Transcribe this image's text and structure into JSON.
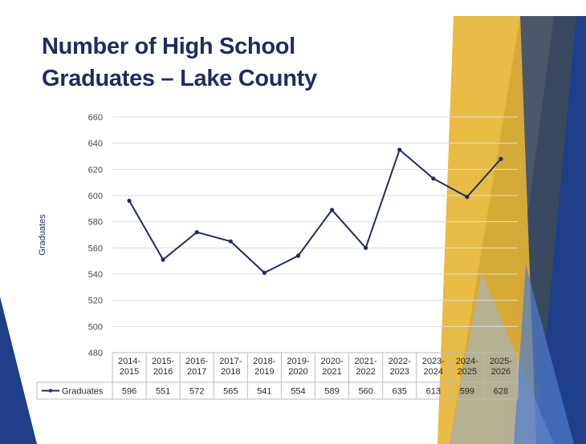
{
  "slide": {
    "title_line1": "Number of High School",
    "title_line2": "Graduates – Lake County"
  },
  "colors": {
    "title": "#1f2d5c",
    "line": "#1f2d5c",
    "gold": "#e5b431",
    "navy": "#1f3f8a",
    "slate": "#3d4a5c",
    "gridline": "#dcdcdc"
  },
  "chart_data": {
    "type": "line",
    "title": "",
    "xlabel": "",
    "ylabel": "Graduates",
    "ylim": [
      480,
      660
    ],
    "yticks": [
      480,
      500,
      520,
      540,
      560,
      580,
      600,
      620,
      640,
      660
    ],
    "grid": true,
    "data_table": true,
    "categories": [
      [
        "2014-",
        "2015"
      ],
      [
        "2015-",
        "2016"
      ],
      [
        "2016-",
        "2017"
      ],
      [
        "2017-",
        "2018"
      ],
      [
        "2018-",
        "2019"
      ],
      [
        "2019-",
        "2020"
      ],
      [
        "2020-",
        "2021"
      ],
      [
        "2021-",
        "2022"
      ],
      [
        "2022-",
        "2023"
      ],
      [
        "2023-",
        "2024"
      ],
      [
        "2024-",
        "2025"
      ],
      [
        "2025-",
        "2026"
      ]
    ],
    "series": [
      {
        "name": "Graduates",
        "values": [
          596,
          551,
          572,
          565,
          541,
          554,
          589,
          560,
          635,
          613,
          599,
          628
        ]
      }
    ]
  }
}
